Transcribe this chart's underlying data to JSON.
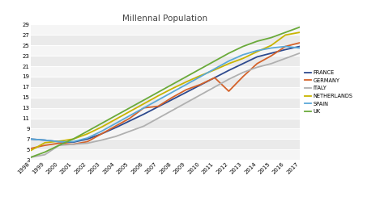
{
  "title": "Millennal Population",
  "years": [
    1998,
    1999,
    2000,
    2001,
    2002,
    2003,
    2004,
    2005,
    2006,
    2007,
    2008,
    2009,
    2010,
    2011,
    2012,
    2013,
    2014,
    2015,
    2016,
    2017
  ],
  "series": {
    "FRANCE": [
      7.0,
      6.8,
      6.5,
      6.4,
      7.0,
      8.0,
      9.2,
      10.5,
      11.8,
      13.2,
      14.6,
      16.0,
      17.4,
      18.8,
      20.2,
      21.5,
      22.8,
      23.5,
      24.2,
      24.8
    ],
    "GERMANY": [
      5.2,
      5.8,
      6.2,
      6.0,
      6.5,
      8.0,
      9.5,
      11.0,
      13.0,
      13.3,
      15.0,
      16.5,
      17.5,
      18.8,
      16.2,
      19.0,
      21.5,
      23.0,
      24.8,
      25.5
    ],
    "ITALY": [
      3.5,
      4.0,
      5.8,
      6.0,
      6.2,
      6.8,
      7.5,
      8.5,
      9.5,
      11.0,
      12.5,
      14.0,
      15.5,
      17.0,
      18.5,
      19.8,
      20.8,
      21.5,
      22.5,
      23.5
    ],
    "NETHERLANDS": [
      4.8,
      6.3,
      6.6,
      7.0,
      8.0,
      9.3,
      10.8,
      12.3,
      13.8,
      15.3,
      16.7,
      18.0,
      19.2,
      20.3,
      21.5,
      22.5,
      23.8,
      25.0,
      27.0,
      27.5
    ],
    "SPAIN": [
      7.0,
      6.8,
      6.5,
      6.5,
      7.2,
      8.5,
      10.0,
      11.5,
      13.0,
      14.5,
      16.0,
      17.5,
      19.0,
      20.5,
      22.0,
      23.2,
      24.0,
      24.5,
      24.8,
      24.5
    ],
    "UK": [
      3.5,
      4.5,
      5.8,
      7.0,
      8.5,
      10.0,
      11.5,
      13.0,
      14.5,
      16.0,
      17.5,
      19.0,
      20.5,
      22.0,
      23.5,
      24.8,
      25.8,
      26.5,
      27.5,
      28.5
    ]
  },
  "colors": {
    "FRANCE": "#2E4A8E",
    "GERMANY": "#D4622A",
    "ITALY": "#B0B0B0",
    "NETHERLANDS": "#C8B400",
    "SPAIN": "#5BA8D8",
    "UK": "#6AAA3A"
  },
  "ylim": [
    3,
    29
  ],
  "yticks": [
    3,
    5,
    7,
    9,
    11,
    13,
    15,
    17,
    19,
    21,
    23,
    25,
    27,
    29
  ],
  "bg_color": "#FFFFFF",
  "plot_bg_color": "#EAEAEA",
  "stripe_color": "#F5F5F5",
  "grid_color": "#FFFFFF",
  "line_width": 1.3
}
